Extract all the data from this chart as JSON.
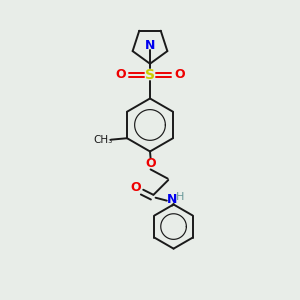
{
  "bg_color": "#e8ede8",
  "bond_color": "#1a1a1a",
  "N_color": "#0000ee",
  "O_color": "#ee0000",
  "S_color": "#cccc00",
  "H_color": "#6a9a9a",
  "figsize": [
    3.0,
    3.0
  ],
  "dpi": 100,
  "xlim": [
    0,
    10
  ],
  "ylim": [
    0,
    10
  ]
}
